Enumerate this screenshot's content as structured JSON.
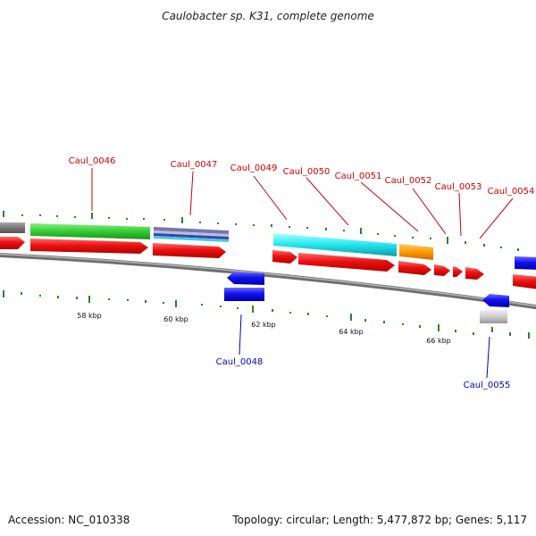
{
  "title": "Caulobacter sp. K31, complete genome",
  "footer": {
    "accession": "Accession: NC_010338",
    "topology": "Topology: circular; Length: 5,477,872 bp; Genes: 5,117"
  },
  "scale_labels": [
    "58 kbp",
    "60 kbp",
    "62 kbp",
    "64 kbp",
    "66 kbp"
  ],
  "gene_labels": [
    {
      "text": "Caul_0046",
      "color": "#cc0000"
    },
    {
      "text": "Caul_0047",
      "color": "#cc0000"
    },
    {
      "text": "Caul_0049",
      "color": "#cc0000"
    },
    {
      "text": "Caul_0050",
      "color": "#cc0000"
    },
    {
      "text": "Caul_0051",
      "color": "#cc0000"
    },
    {
      "text": "Caul_0052",
      "color": "#cc0000"
    },
    {
      "text": "Caul_0053",
      "color": "#cc0000"
    },
    {
      "text": "Caul_0054",
      "color": "#cc0000"
    },
    {
      "text": "Caul_0048",
      "color": "#0000cc"
    },
    {
      "text": "Caul_0055",
      "color": "#0000cc"
    }
  ],
  "colors": {
    "backbone": "#8a8a8a",
    "cds_forward": "#ee1111",
    "cds_reverse": "#1111ee",
    "tick": "#228822"
  }
}
